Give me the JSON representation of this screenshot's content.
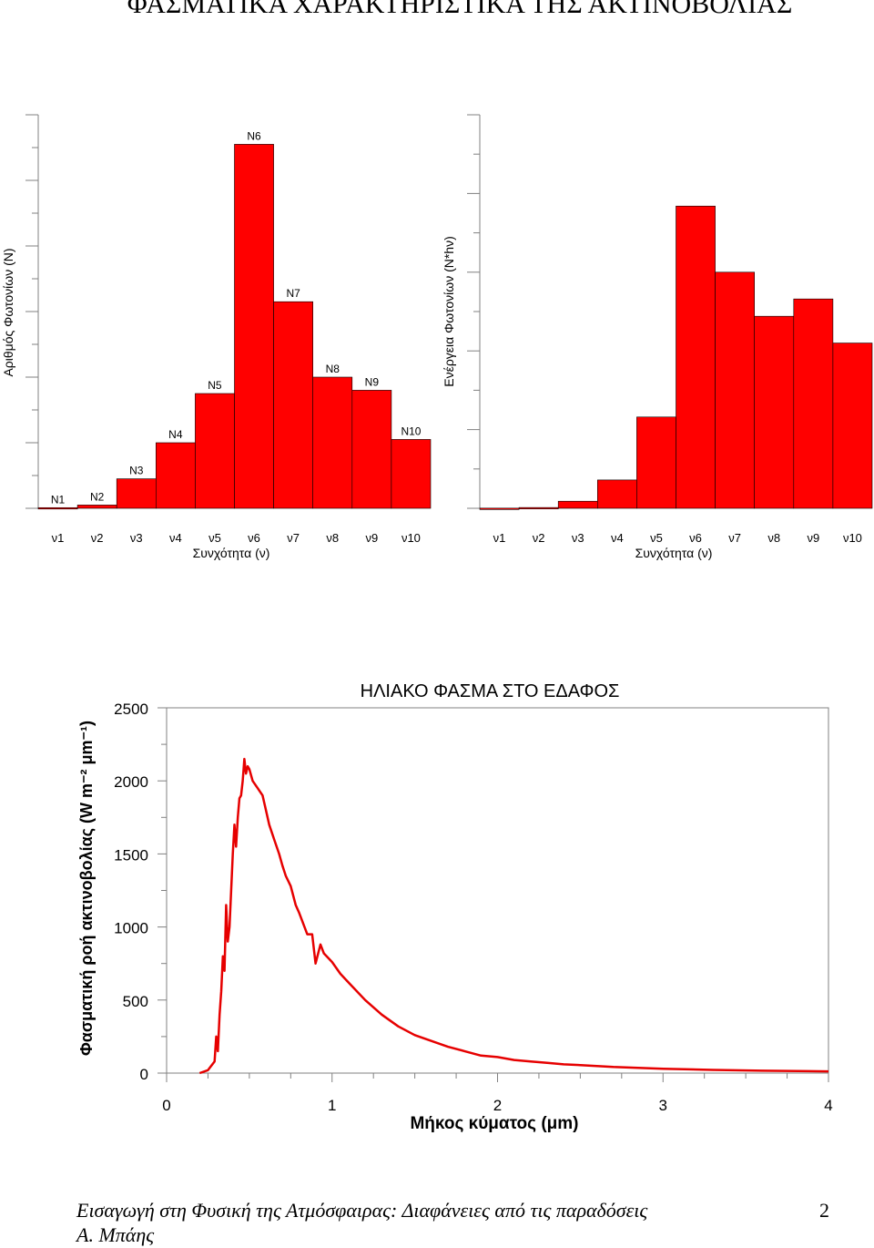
{
  "page": {
    "title": "ΦΑΣΜΑΤΙΚΑ ΧΑΡΑΚΤΗΡΙΣΤΙΚΑ ΤΗΣ ΑΚΤΙΝΟΒΟΛΙΑΣ",
    "footer_line1": "Εισαγωγή στη Φυσική της Ατμόσφαιρας: Διαφάνειες από τις παραδόσεις",
    "footer_line2": "Α. Μπάης",
    "page_number": "2"
  },
  "colors": {
    "bar_fill": "#ff0000",
    "bar_stroke": "#000000",
    "line": "#e60000",
    "axis": "#808080"
  },
  "chart_data": [
    {
      "type": "bar",
      "title": "",
      "xlabel": "Συνχότητα (ν)",
      "ylabel": "Αριθμός Φωτονίων (Ν)",
      "categories": [
        "ν1",
        "ν2",
        "ν3",
        "ν4",
        "ν5",
        "ν6",
        "ν7",
        "ν8",
        "ν9",
        "ν10"
      ],
      "bar_labels": [
        "N1",
        "N2",
        "N3",
        "N4",
        "N5",
        "N6",
        "N7",
        "N8",
        "N9",
        "N10"
      ],
      "values": [
        0.1,
        0.5,
        4.5,
        10,
        17.5,
        55.5,
        31.5,
        20,
        18,
        10.5
      ],
      "ylim": [
        0,
        60
      ],
      "grid": false
    },
    {
      "type": "bar",
      "title": "",
      "xlabel": "Συνχότητα (ν)",
      "ylabel": "Ενέργεια Φωτονίων (Ν*hν)",
      "categories": [
        "ν1",
        "ν2",
        "ν3",
        "ν4",
        "ν5",
        "ν6",
        "ν7",
        "ν8",
        "ν9",
        "ν10"
      ],
      "values": [
        0.1,
        0.5,
        4.5,
        18,
        58,
        192,
        150,
        122,
        133,
        105
      ],
      "ylim": [
        0,
        250
      ],
      "grid": false
    },
    {
      "type": "line",
      "title": "ΗΛΙΑΚΟ ΦΑΣΜΑ ΣΤΟ ΕΔΑΦΟΣ",
      "xlabel": "Μήκος κύματος (μm)",
      "ylabel": "Φασματική ροή ακτινοβολίας (W m⁻² μm⁻¹)",
      "xlim": [
        0,
        4
      ],
      "ylim": [
        0,
        2500
      ],
      "xticks": [
        "0",
        "1",
        "2",
        "3",
        "4"
      ],
      "yticks": [
        "0",
        "500",
        "1000",
        "1500",
        "2000",
        "2500"
      ],
      "grid": false,
      "series": [
        {
          "x": [
            0.2,
            0.25,
            0.29,
            0.3,
            0.31,
            0.32,
            0.33,
            0.34,
            0.35,
            0.36,
            0.37,
            0.38,
            0.39,
            0.4,
            0.41,
            0.42,
            0.43,
            0.44,
            0.45,
            0.46,
            0.47,
            0.48,
            0.49,
            0.5,
            0.52,
            0.55,
            0.58,
            0.6,
            0.62,
            0.65,
            0.68,
            0.7,
            0.72,
            0.75,
            0.78,
            0.8,
            0.85,
            0.88,
            0.9,
            0.93,
            0.95,
            1.0,
            1.05,
            1.1,
            1.2,
            1.3,
            1.4,
            1.5,
            1.6,
            1.7,
            1.8,
            1.9,
            2.0,
            2.1,
            2.2,
            2.3,
            2.4,
            2.5,
            2.7,
            3.0,
            3.3,
            3.6,
            4.0
          ],
          "y": [
            0,
            20,
            80,
            250,
            150,
            400,
            560,
            800,
            700,
            1150,
            900,
            1000,
            1250,
            1500,
            1700,
            1550,
            1750,
            1880,
            1900,
            2000,
            2150,
            2050,
            2100,
            2080,
            2000,
            1950,
            1900,
            1800,
            1700,
            1600,
            1500,
            1420,
            1350,
            1280,
            1150,
            1100,
            950,
            950,
            750,
            880,
            820,
            760,
            680,
            620,
            500,
            400,
            320,
            260,
            220,
            180,
            150,
            120,
            110,
            90,
            80,
            70,
            60,
            55,
            42,
            30,
            22,
            16,
            12
          ]
        }
      ]
    }
  ]
}
